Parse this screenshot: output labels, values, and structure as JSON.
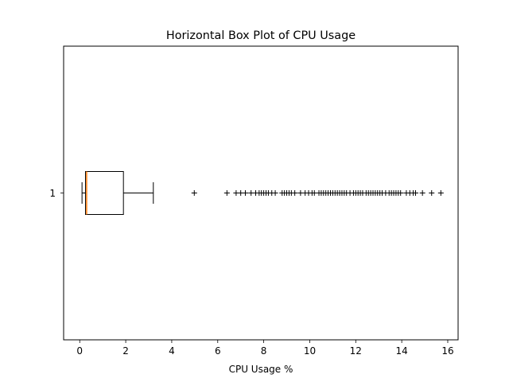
{
  "chart_data": {
    "type": "box",
    "orientation": "horizontal",
    "title": "Horizontal Box Plot of CPU Usage",
    "xlabel": "CPU Usage %",
    "ylabel": "",
    "xlim": [
      -0.7,
      16.45
    ],
    "xticks": [
      0,
      2,
      4,
      6,
      8,
      10,
      12,
      14,
      16
    ],
    "categories": [
      "1"
    ],
    "grid": false,
    "boxes": [
      {
        "label": "1",
        "whisker_low": 0.1,
        "q1": 0.25,
        "median": 0.3,
        "q3": 1.9,
        "whisker_high": 3.2,
        "outliers": [
          4.98,
          6.4,
          6.8,
          7.0,
          7.2,
          7.45,
          7.65,
          7.8,
          7.9,
          8.0,
          8.1,
          8.2,
          8.35,
          8.5,
          8.8,
          8.9,
          9.0,
          9.1,
          9.2,
          9.35,
          9.6,
          9.8,
          9.95,
          10.1,
          10.2,
          10.4,
          10.5,
          10.6,
          10.7,
          10.8,
          10.9,
          11.0,
          11.1,
          11.2,
          11.3,
          11.4,
          11.5,
          11.6,
          11.75,
          11.9,
          12.0,
          12.1,
          12.2,
          12.3,
          12.45,
          12.55,
          12.65,
          12.75,
          12.85,
          12.95,
          13.05,
          13.15,
          13.3,
          13.45,
          13.55,
          13.65,
          13.75,
          13.85,
          13.95,
          14.2,
          14.35,
          14.5,
          14.6,
          14.9,
          15.3,
          15.7
        ]
      }
    ],
    "colors": {
      "box": "#000000",
      "median": "#ff7f0e",
      "outlier": "#000000"
    }
  }
}
